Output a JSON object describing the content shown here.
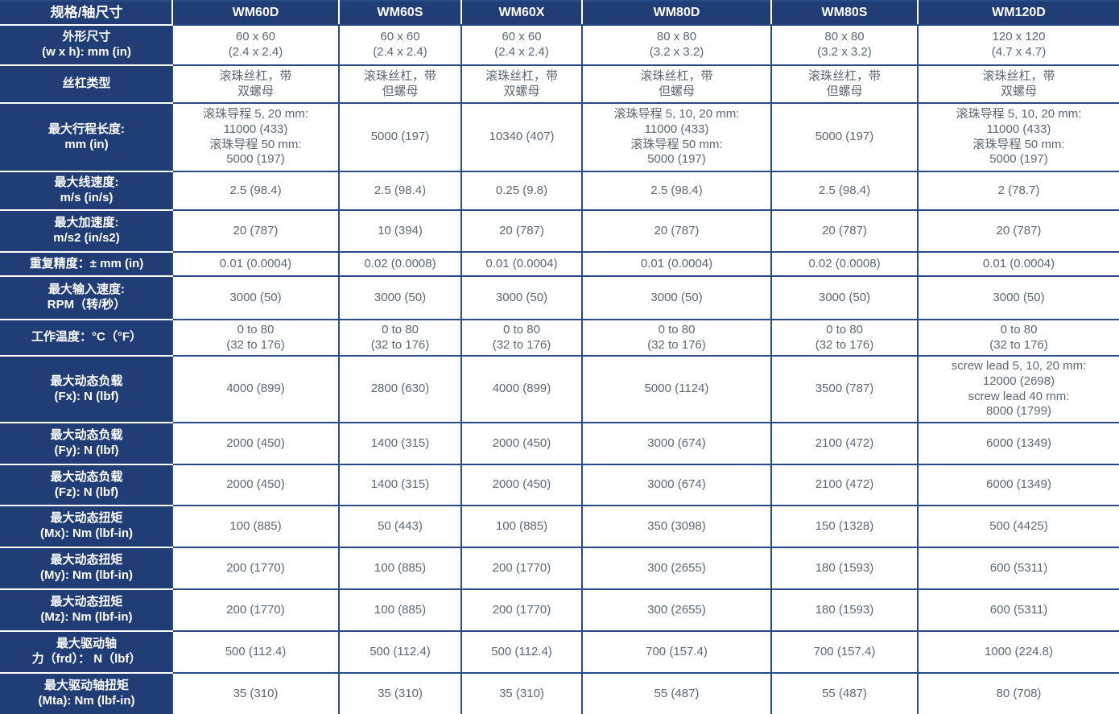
{
  "table": {
    "corner_label": "规格/轴尺寸",
    "columns": [
      "WM60D",
      "WM60S",
      "WM60X",
      "WM80D",
      "WM80S",
      "WM120D"
    ],
    "rows": [
      {
        "label": "外形尺寸\n(w x h): mm (in)",
        "values": [
          "60 x 60\n(2.4 x 2.4)",
          "60 x 60\n(2.4 x 2.4)",
          "60 x 60\n(2.4 x 2.4)",
          "80 x 80\n(3.2 x 3.2)",
          "80 x 80\n(3.2 x 3.2)",
          "120 x 120\n(4.7 x 4.7)"
        ]
      },
      {
        "label": "丝杠类型",
        "values": [
          "滚珠丝杠，带\n双螺母",
          "滚珠丝杠，带\n但螺母",
          "滚珠丝杠，带\n双螺母",
          "滚珠丝杠，带\n但螺母",
          "滚珠丝杠，带\n但螺母",
          "滚珠丝杠，带\n双螺母"
        ]
      },
      {
        "label": "最大行程长度:\nmm (in)",
        "values": [
          "滚珠导程 5, 20 mm:\n11000 (433)\n滚珠导程 50 mm:\n5000 (197)",
          "5000 (197)",
          "10340 (407)",
          "滚珠导程 5, 10, 20 mm:\n11000 (433)\n滚珠导程 50 mm:\n5000 (197)",
          "5000 (197)",
          "滚珠导程 5, 10, 20 mm:\n11000 (433)\n滚珠导程 50 mm:\n5000 (197)"
        ]
      },
      {
        "label": "最大线速度:\nm/s (in/s)",
        "values": [
          "2.5 (98.4)",
          "2.5 (98.4)",
          "0.25 (9.8)",
          "2.5 (98.4)",
          "2.5 (98.4)",
          "2 (78.7)"
        ]
      },
      {
        "label": "最大加速度:\nm/s2 (in/s2)",
        "values": [
          "20 (787)",
          "10 (394)",
          "20 (787)",
          "20 (787)",
          "20 (787)",
          "20 (787)"
        ]
      },
      {
        "label": "重复精度：± mm (in)",
        "values": [
          "0.01 (0.0004)",
          "0.02 (0.0008)",
          "0.01 (0.0004)",
          "0.01 (0.0004)",
          "0.02 (0.0008)",
          "0.01 (0.0004)"
        ]
      },
      {
        "label": "最大输入速度:\nRPM（转/秒）",
        "values": [
          "3000 (50)",
          "3000 (50)",
          "3000 (50)",
          "3000 (50)",
          "3000 (50)",
          "3000 (50)"
        ]
      },
      {
        "label": "工作温度：°C（°F）",
        "values": [
          "0 to 80\n(32 to 176)",
          "0 to 80\n(32 to 176)",
          "0 to 80\n(32 to 176)",
          "0 to 80\n(32 to 176)",
          "0 to 80\n(32 to 176)",
          "0 to 80\n(32 to 176)"
        ]
      },
      {
        "label": "最大动态负载\n(Fx): N (lbf)",
        "values": [
          "4000 (899)",
          "2800 (630)",
          "4000 (899)",
          "5000 (1124)",
          "3500 (787)",
          "screw lead 5, 10, 20 mm:\n12000 (2698)\nscrew lead 40 mm:\n8000 (1799)"
        ]
      },
      {
        "label": "最大动态负载\n(Fy): N (lbf)",
        "values": [
          "2000 (450)",
          "1400 (315)",
          "2000 (450)",
          "3000 (674)",
          "2100 (472)",
          "6000 (1349)"
        ]
      },
      {
        "label": "最大动态负载\n(Fz): N (lbf)",
        "values": [
          "2000 (450)",
          "1400 (315)",
          "2000 (450)",
          "3000 (674)",
          "2100 (472)",
          "6000 (1349)"
        ]
      },
      {
        "label": "最大动态扭矩\n(Mx): Nm (lbf-in)",
        "values": [
          "100 (885)",
          "50 (443)",
          "100 (885)",
          "350 (3098)",
          "150 (1328)",
          "500 (4425)"
        ]
      },
      {
        "label": "最大动态扭矩\n(My): Nm (lbf-in)",
        "values": [
          "200 (1770)",
          "100 (885)",
          "200 (1770)",
          "300 (2655)",
          "180 (1593)",
          "600 (5311)"
        ]
      },
      {
        "label": "最大动态扭矩\n(Mz): Nm (lbf-in)",
        "values": [
          "200 (1770)",
          "100 (885)",
          "200 (1770)",
          "300 (2655)",
          "180 (1593)",
          "600 (5311)"
        ]
      },
      {
        "label": "最大驱动轴\n力（frd）： N（lbf）",
        "values": [
          "500 (112.4)",
          "500 (112.4)",
          "500 (112.4)",
          "700 (157.4)",
          "700 (157.4)",
          "1000 (224.8)"
        ]
      },
      {
        "label": "最大驱动轴扭矩\n(Mta): Nm (lbf-in)",
        "values": [
          "35 (310)",
          "35 (310)",
          "35 (310)",
          "55 (487)",
          "55 (487)",
          "80 (708)"
        ]
      }
    ],
    "colors": {
      "header_bg": "#203d75",
      "grid_border": "#2a4a85",
      "header_separator": "#ffffff",
      "data_text": "#5c6874",
      "header_text": "#ffffff",
      "cell_bg": "#ffffff"
    }
  }
}
